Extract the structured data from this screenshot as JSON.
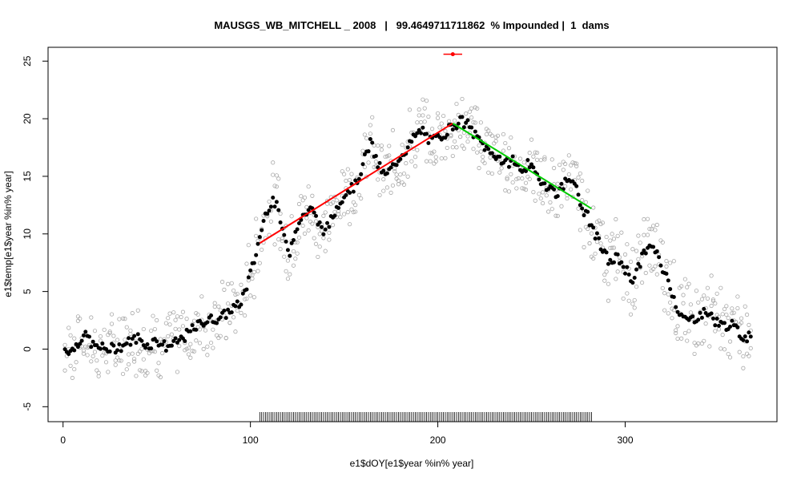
{
  "chart_data": {
    "type": "scatter",
    "title": "MAUSGS_WB_MITCHELL _ 2008   |   99.4649711711862  % Impounded |  1  dams",
    "xlabel": "e1$dOY[e1$year %in% year]",
    "ylabel": "e1$temp[e1$year %in% year]",
    "xlim": [
      -8,
      381
    ],
    "ylim": [
      -6.3,
      26.2
    ],
    "x_ticks": [
      0,
      100,
      200,
      300
    ],
    "y_ticks": [
      -5,
      0,
      5,
      10,
      15,
      20,
      25
    ],
    "grid": false,
    "colors": {
      "gray_points": "#a8a8a8",
      "black_points": "#000000",
      "rising_line": "#ff0000",
      "falling_line": "#00cc00",
      "peak_marker": "#ff0000",
      "rug": "#000000"
    },
    "rising_segment": {
      "x": [
        105,
        208
      ],
      "y": [
        9.2,
        19.6
      ]
    },
    "falling_segment": {
      "x": [
        208,
        282
      ],
      "y": [
        19.6,
        12.2
      ]
    },
    "peak_marker": {
      "x": 208,
      "y": 25.6,
      "x_range": [
        203,
        213
      ]
    },
    "rug": {
      "x_start": 105,
      "x_end": 282,
      "step": 1
    },
    "black_anchors": [
      [
        1,
        0.0
      ],
      [
        5,
        -0.1
      ],
      [
        8,
        0.6
      ],
      [
        10,
        1.0
      ],
      [
        13,
        1.1
      ],
      [
        16,
        0.3
      ],
      [
        20,
        0.1
      ],
      [
        25,
        0.0
      ],
      [
        30,
        0.2
      ],
      [
        35,
        0.6
      ],
      [
        40,
        1.0
      ],
      [
        45,
        0.3
      ],
      [
        50,
        0.8
      ],
      [
        55,
        0.2
      ],
      [
        60,
        0.5
      ],
      [
        65,
        1.1
      ],
      [
        70,
        1.8
      ],
      [
        75,
        2.4
      ],
      [
        80,
        2.6
      ],
      [
        85,
        2.8
      ],
      [
        90,
        3.5
      ],
      [
        94,
        3.8
      ],
      [
        97,
        5.0
      ],
      [
        100,
        6.5
      ],
      [
        103,
        8.3
      ],
      [
        106,
        10.5
      ],
      [
        109,
        12.2
      ],
      [
        112,
        13.0
      ],
      [
        115,
        12.0
      ],
      [
        118,
        9.5
      ],
      [
        121,
        8.5
      ],
      [
        124,
        10.5
      ],
      [
        128,
        11.5
      ],
      [
        132,
        12.3
      ],
      [
        136,
        11.0
      ],
      [
        140,
        10.2
      ],
      [
        144,
        11.5
      ],
      [
        148,
        13.0
      ],
      [
        152,
        13.8
      ],
      [
        156,
        14.2
      ],
      [
        160,
        16.0
      ],
      [
        164,
        18.0
      ],
      [
        168,
        16.0
      ],
      [
        172,
        15.0
      ],
      [
        176,
        15.8
      ],
      [
        180,
        16.8
      ],
      [
        184,
        17.5
      ],
      [
        188,
        18.5
      ],
      [
        192,
        19.0
      ],
      [
        196,
        18.0
      ],
      [
        200,
        18.3
      ],
      [
        204,
        18.8
      ],
      [
        208,
        19.4
      ],
      [
        212,
        19.8
      ],
      [
        216,
        19.5
      ],
      [
        220,
        18.5
      ],
      [
        224,
        17.8
      ],
      [
        228,
        17.0
      ],
      [
        232,
        16.8
      ],
      [
        236,
        16.0
      ],
      [
        240,
        16.5
      ],
      [
        244,
        15.5
      ],
      [
        248,
        16.0
      ],
      [
        252,
        15.2
      ],
      [
        256,
        14.5
      ],
      [
        260,
        14.0
      ],
      [
        264,
        13.5
      ],
      [
        268,
        14.5
      ],
      [
        272,
        15.0
      ],
      [
        276,
        12.5
      ],
      [
        280,
        11.5
      ],
      [
        284,
        10.0
      ],
      [
        288,
        8.5
      ],
      [
        292,
        7.5
      ],
      [
        296,
        8.0
      ],
      [
        300,
        7.0
      ],
      [
        304,
        6.0
      ],
      [
        308,
        7.5
      ],
      [
        312,
        9.0
      ],
      [
        316,
        8.5
      ],
      [
        320,
        7.0
      ],
      [
        324,
        5.5
      ],
      [
        328,
        3.5
      ],
      [
        332,
        2.5
      ],
      [
        336,
        2.6
      ],
      [
        340,
        3.0
      ],
      [
        344,
        3.2
      ],
      [
        348,
        2.5
      ],
      [
        352,
        2.0
      ],
      [
        356,
        2.2
      ],
      [
        360,
        1.5
      ],
      [
        364,
        1.0
      ],
      [
        367,
        1.3
      ]
    ]
  }
}
